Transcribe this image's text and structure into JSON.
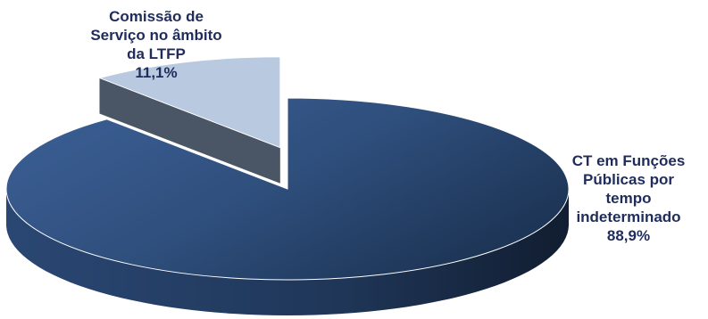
{
  "chart_data": {
    "type": "pie",
    "title": "",
    "slices": [
      {
        "label_lines": [
          "CT em Funções",
          "Públicas por",
          "tempo",
          "indeterminado"
        ],
        "value_text": "88,9%",
        "value": 88.9,
        "color": "#2f4f7d",
        "exploded": false
      },
      {
        "label_lines": [
          "Comissão de",
          "Serviço no âmbito",
          "da LTFP"
        ],
        "value_text": "11,1%",
        "value": 11.1,
        "color": "#b8c9e0",
        "exploded": true
      }
    ]
  }
}
